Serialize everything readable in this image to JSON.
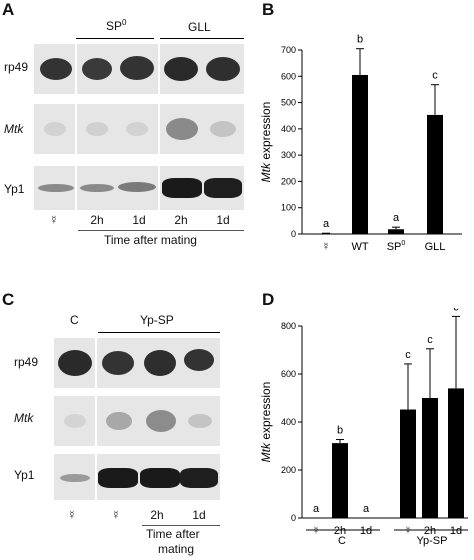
{
  "panels": {
    "A": {
      "letter": "A",
      "group_sp0": "SP",
      "group_sp0_sup": "0",
      "group_gll": "GLL",
      "rows": [
        "rp49",
        "Mtk",
        "Yp1"
      ],
      "lane_labels": [
        "☿",
        "2h",
        "1d",
        "2h",
        "1d"
      ],
      "caption": "Time after mating"
    },
    "B": {
      "letter": "B"
    },
    "C": {
      "letter": "C",
      "group_c": "C",
      "group_ypsp": "Yp-SP",
      "rows": [
        "rp49",
        "Mtk",
        "Yp1"
      ],
      "lane_labels": [
        "☿",
        "☿",
        "2h",
        "1d"
      ],
      "caption_line1": "Time after",
      "caption_line2": "mating"
    },
    "D": {
      "letter": "D",
      "group_c": "C",
      "group_ypsp": "Yp-SP"
    }
  },
  "chart_data": [
    {
      "panel": "B",
      "type": "bar",
      "ylabel_italic": "Mtk",
      "ylabel_rest": " expression",
      "ylim": [
        0,
        700
      ],
      "yticks": [
        "0",
        "100",
        "200",
        "300",
        "400",
        "500",
        "600",
        "700"
      ],
      "categories": [
        "☿",
        "WT",
        "SP",
        "GLL"
      ],
      "category_sup": [
        "",
        "",
        "0",
        ""
      ],
      "values": [
        2,
        605,
        18,
        453
      ],
      "errors": [
        1,
        100,
        8,
        115
      ],
      "letters": [
        "a",
        "b",
        "a",
        "c"
      ]
    },
    {
      "panel": "D",
      "type": "bar",
      "ylabel_italic": "Mtk",
      "ylabel_rest": " expression",
      "ylim": [
        0,
        800
      ],
      "yticks": [
        "0",
        "200",
        "400",
        "600",
        "800"
      ],
      "categories": [
        "☿",
        "2h",
        "1d",
        "☿",
        "2h",
        "1d"
      ],
      "values": [
        0,
        312,
        0,
        452,
        500,
        540
      ],
      "errors": [
        0,
        15,
        0,
        190,
        205,
        300
      ],
      "letters": [
        "a",
        "b",
        "a",
        "c",
        "c",
        "c"
      ],
      "groups": [
        "C",
        "Yp-SP"
      ]
    }
  ],
  "colors": {
    "bar": "#000000",
    "blot_bg": "#e6e6e6",
    "band": "#2a2a2a"
  }
}
